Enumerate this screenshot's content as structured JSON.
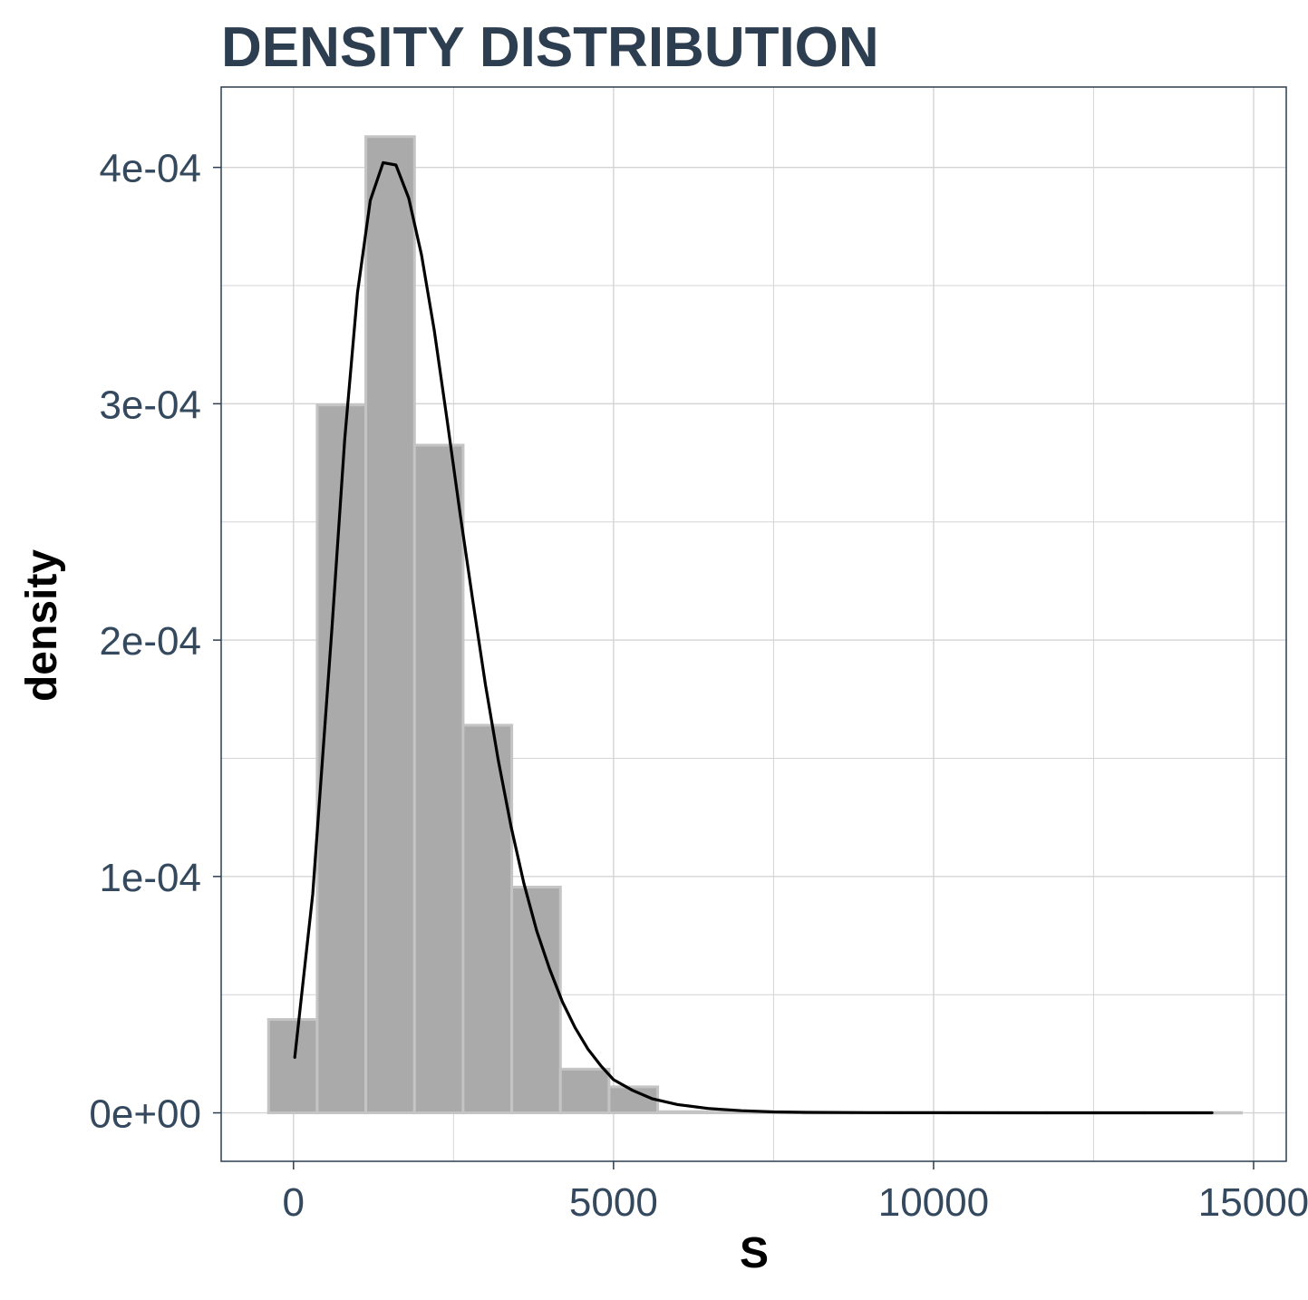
{
  "chart_data": {
    "type": "bar",
    "title": "DENSITY DISTRIBUTION",
    "xlabel": "S",
    "ylabel": "density",
    "xlim": [
      -1130,
      15510
    ],
    "ylim": [
      -2.05e-05,
      0.000434
    ],
    "x_ticks": [
      0,
      5000,
      10000,
      15000
    ],
    "x_tick_labels": [
      "0",
      "5000",
      "10000",
      "15000"
    ],
    "y_ticks": [
      0,
      0.0001,
      0.0002,
      0.0003,
      0.0004
    ],
    "y_tick_labels": [
      "0e+00",
      "1e-04",
      "2e-04",
      "3e-04",
      "4e-04"
    ],
    "grid": true,
    "histogram": {
      "bin_edges": [
        -390,
        370,
        1130,
        1890,
        2650,
        3410,
        4170,
        4930,
        5690,
        6450,
        7210,
        7970,
        8730,
        9490,
        10250,
        11010,
        11770,
        12530,
        13290,
        14050,
        14810
      ],
      "densities": [
        3.95e-05,
        0.0002995,
        0.000413,
        0.0002825,
        0.000164,
        9.55e-05,
        1.85e-05,
        1.1e-05,
        5e-07,
        3e-07,
        2e-07,
        1e-07,
        1e-07,
        1e-07,
        1e-07,
        1e-07,
        1e-07,
        1e-07,
        1e-07,
        1e-07
      ],
      "fill": "#aaaaaa",
      "stroke": "#c4c4c4"
    },
    "density_curve": {
      "color": "#000000",
      "x": [
        20,
        300,
        600,
        800,
        1000,
        1200,
        1400,
        1600,
        1800,
        2000,
        2200,
        2400,
        2600,
        2800,
        3000,
        3200,
        3400,
        3600,
        3800,
        4000,
        4200,
        4400,
        4600,
        4800,
        5000,
        5300,
        5600,
        6000,
        6500,
        7000,
        7500,
        8000,
        9000,
        10000,
        12000,
        14350
      ],
      "y": [
        2.35e-05,
        9.25e-05,
        0.000205,
        0.000285,
        0.000347,
        0.000386,
        0.000402,
        0.000401,
        0.000387,
        0.000363,
        0.000331,
        0.000293,
        0.000254,
        0.000217,
        0.000181,
        0.000149,
        0.000121,
        9.7e-05,
        7.7e-05,
        6.1e-05,
        4.7e-05,
        3.6e-05,
        2.7e-05,
        2e-05,
        1.4e-05,
        9.5e-06,
        6e-06,
        3.5e-06,
        1.8e-06,
        9e-07,
        4e-07,
        2e-07,
        1e-07,
        5e-08,
        2e-08,
        1e-08
      ]
    }
  }
}
